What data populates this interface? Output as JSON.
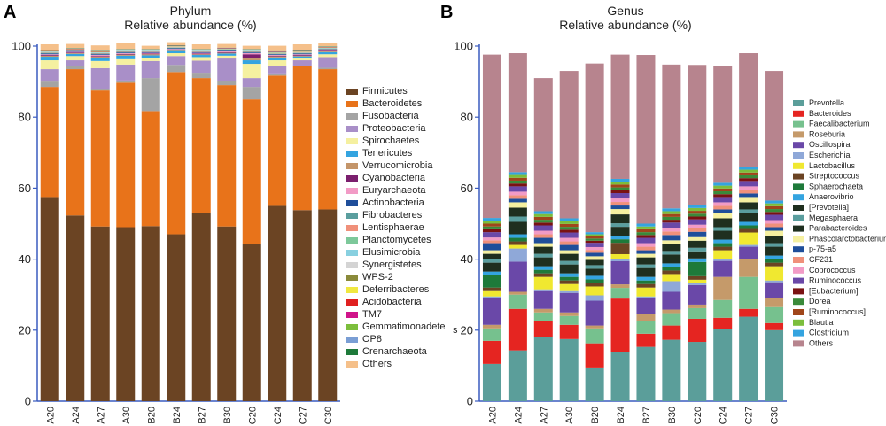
{
  "colors": {
    "Firmicutes": "#6b4423",
    "Bacteroidetes": "#e8731a",
    "Fusobacteria": "#a4a4a4",
    "Proteobacteria": "#a98fc8",
    "Spirochaetes": "#f5f0a0",
    "Tenericutes": "#34a4e0",
    "Verrucomicrobia": "#c4956a",
    "Cyanobacteria": "#7b1f6e",
    "Euryarchaeota": "#f29bc6",
    "Actinobacteria": "#1f4e9a",
    "Fibrobacteres": "#5a9e9e",
    "Lentisphaerae": "#f0907a",
    "Planctomycetes": "#7dc89a",
    "Elusimicrobia": "#88d0e0",
    "Synergistetes": "#d4d4d4",
    "WPS-2": "#8a8a3a",
    "Deferribacteres": "#f0e840",
    "Acidobacteria": "#e02020",
    "TM7": "#d0148a",
    "Gemmatimonadetes": "#7cbe3c",
    "OP8": "#7a9ed4",
    "Crenarchaeota": "#1e7a3a",
    "Others": "#f5c08a",
    "Prevotella": "#5b9e9a",
    "Bacteroides": "#e52521",
    "Faecalibacterium": "#76c18e",
    "Roseburia": "#c59a6a",
    "Oscillospira": "#6a48a8",
    "Escherichia": "#8fa8d8",
    "Lactobacillus": "#f0e830",
    "Streptococcus": "#6b4423",
    "Sphaerochaeta": "#1e7a3a",
    "Anaerovibrio": "#34a4e0",
    "[Prevotella]": "#1f2f1f",
    "Megasphaera": "#5a9e9e",
    "Parabacteroides": "#1f2f1f",
    "Phascolarctobacterium": "#f5f0a0",
    "p-75-a5": "#1f4e9a",
    "CF231": "#f0907a",
    "Coprococcus": "#f29bc6",
    "Ruminococcus": "#6a48a8",
    "[Eubacterium]": "#7a1212",
    "Dorea": "#3a8a3a",
    "[Ruminococcus]": "#a0461a",
    "Blautia": "#7cbe3c",
    "Clostridium": "#34a4e0",
    "Others_genus": "#b7848e"
  },
  "chart_data": [
    {
      "panel": "A",
      "type": "bar",
      "stacked": true,
      "title": "Phylum",
      "subtitle": "Relative abundance (%)",
      "xlabel": "",
      "ylabel": "",
      "ylim": [
        0,
        100
      ],
      "yticks": [
        0,
        20,
        40,
        60,
        80,
        100
      ],
      "categories": [
        "A20",
        "A24",
        "A27",
        "A30",
        "B20",
        "B24",
        "B27",
        "B30",
        "C20",
        "C24",
        "C27",
        "C30"
      ],
      "legend": [
        "Firmicutes",
        "Bacteroidetes",
        "Fusobacteria",
        "Proteobacteria",
        "Spirochaetes",
        "Tenericutes",
        "Verrucomicrobia",
        "Cyanobacteria",
        "Euryarchaeota",
        "Actinobacteria",
        "Fibrobacteres",
        "Lentisphaerae",
        "Planctomycetes",
        "Elusimicrobia",
        "Synergistetes",
        "WPS-2",
        "Deferribacteres",
        "Acidobacteria",
        "TM7",
        "Gemmatimonadete",
        "OP8",
        "Crenarchaeota",
        "Others"
      ],
      "legend_extra_mark": "s",
      "series": [
        {
          "name": "Firmicutes",
          "colorKey": "Firmicutes",
          "values": [
            57.5,
            52.3,
            49.2,
            49.0,
            49.3,
            47.0,
            53.0,
            49.2,
            44.3,
            55.0,
            53.8,
            54.0
          ]
        },
        {
          "name": "Bacteroidetes",
          "colorKey": "Bacteroidetes",
          "values": [
            31.0,
            41.2,
            38.3,
            40.7,
            32.4,
            45.7,
            38.0,
            39.8,
            40.7,
            36.7,
            40.5,
            39.5
          ]
        },
        {
          "name": "Fusobacteria",
          "colorKey": "Fusobacteria",
          "values": [
            1.5,
            1.0,
            0.5,
            0.6,
            9.3,
            2.0,
            1.5,
            1.2,
            3.5,
            0.6,
            0.2,
            0.4
          ]
        },
        {
          "name": "Proteobacteria",
          "colorKey": "Proteobacteria",
          "values": [
            3.5,
            1.5,
            5.8,
            4.5,
            4.8,
            2.5,
            3.4,
            6.3,
            2.5,
            2.0,
            1.5,
            3.0
          ]
        },
        {
          "name": "Spirochaetes",
          "colorKey": "Spirochaetes",
          "values": [
            2.5,
            1.2,
            2.0,
            1.5,
            0.8,
            0.8,
            1.0,
            0.8,
            4.0,
            1.7,
            0.5,
            0.8
          ]
        },
        {
          "name": "Tenericutes",
          "colorKey": "Tenericutes",
          "values": [
            1.0,
            0.6,
            0.9,
            1.0,
            0.8,
            0.6,
            0.6,
            0.6,
            1.0,
            0.8,
            0.6,
            0.6
          ]
        },
        {
          "name": "Verrucomicrobia",
          "colorKey": "Verrucomicrobia",
          "values": [
            0.3,
            0.2,
            0.3,
            0.3,
            0.3,
            0.2,
            0.2,
            0.2,
            0.5,
            0.3,
            0.2,
            0.2
          ]
        },
        {
          "name": "Cyanobacteria",
          "colorKey": "Cyanobacteria",
          "values": [
            0.2,
            0.2,
            0.2,
            0.2,
            0.2,
            0.2,
            0.2,
            0.2,
            1.2,
            0.2,
            0.2,
            0.2
          ]
        },
        {
          "name": "Euryarchaeota",
          "colorKey": "Euryarchaeota",
          "values": [
            0.2,
            0.2,
            0.3,
            0.2,
            0.2,
            0.2,
            0.2,
            0.2,
            0.3,
            0.2,
            0.2,
            0.2
          ]
        },
        {
          "name": "Actinobacteria",
          "colorKey": "Actinobacteria",
          "values": [
            0.2,
            0.2,
            0.2,
            0.2,
            0.2,
            0.2,
            0.2,
            0.2,
            0.2,
            0.2,
            0.2,
            0.2
          ]
        },
        {
          "name": "Fibrobacteres",
          "colorKey": "Fibrobacteres",
          "values": [
            0.2,
            0.1,
            0.2,
            0.2,
            0.1,
            0.1,
            0.1,
            0.1,
            0.2,
            0.1,
            0.1,
            0.1
          ]
        },
        {
          "name": "Lentisphaerae",
          "colorKey": "Lentisphaerae",
          "values": [
            0.1,
            0.1,
            0.1,
            0.1,
            0.1,
            0.1,
            0.1,
            0.1,
            0.1,
            0.1,
            0.1,
            0.1
          ]
        },
        {
          "name": "Planctomycetes",
          "colorKey": "Planctomycetes",
          "values": [
            0.1,
            0.1,
            0.1,
            0.1,
            0.1,
            0.1,
            0.1,
            0.1,
            0.1,
            0.1,
            0.1,
            0.1
          ]
        },
        {
          "name": "Elusimicrobia",
          "colorKey": "Elusimicrobia",
          "values": [
            0.1,
            0.1,
            0.1,
            0.1,
            0.1,
            0.1,
            0.1,
            0.1,
            0.1,
            0.1,
            0.1,
            0.1
          ]
        },
        {
          "name": "Synergistetes",
          "colorKey": "Synergistetes",
          "values": [
            0.1,
            0.1,
            0.1,
            0.1,
            0.1,
            0.1,
            0.1,
            0.1,
            0.1,
            0.1,
            0.1,
            0.1
          ]
        },
        {
          "name": "WPS-2",
          "colorKey": "WPS-2",
          "values": [
            0.05,
            0.05,
            0.05,
            0.05,
            0.05,
            0.05,
            0.05,
            0.05,
            0.05,
            0.05,
            0.05,
            0.05
          ]
        },
        {
          "name": "Deferribacteres",
          "colorKey": "Deferribacteres",
          "values": [
            0.05,
            0.05,
            0.05,
            0.05,
            0.05,
            0.05,
            0.05,
            0.05,
            0.05,
            0.05,
            0.05,
            0.05
          ]
        },
        {
          "name": "Acidobacteria",
          "colorKey": "Acidobacteria",
          "values": [
            0.05,
            0.05,
            0.05,
            0.05,
            0.05,
            0.05,
            0.05,
            0.05,
            0.05,
            0.05,
            0.05,
            0.05
          ]
        },
        {
          "name": "TM7",
          "colorKey": "TM7",
          "values": [
            0.05,
            0.05,
            0.05,
            0.05,
            0.05,
            0.05,
            0.05,
            0.05,
            0.05,
            0.05,
            0.05,
            0.05
          ]
        },
        {
          "name": "Gemmatimonadetes",
          "colorKey": "Gemmatimonadetes",
          "values": [
            0.05,
            0.05,
            0.05,
            0.05,
            0.05,
            0.05,
            0.05,
            0.05,
            0.05,
            0.05,
            0.05,
            0.05
          ]
        },
        {
          "name": "OP8",
          "colorKey": "OP8",
          "values": [
            0.05,
            0.05,
            0.05,
            0.05,
            0.05,
            0.05,
            0.05,
            0.05,
            0.05,
            0.05,
            0.05,
            0.05
          ]
        },
        {
          "name": "Crenarchaeota",
          "colorKey": "Crenarchaeota",
          "values": [
            0.05,
            0.05,
            0.05,
            0.05,
            0.05,
            0.05,
            0.05,
            0.05,
            0.05,
            0.05,
            0.05,
            0.05
          ]
        },
        {
          "name": "Others",
          "colorKey": "Others",
          "values": [
            1.65,
            1.15,
            1.55,
            1.75,
            0.95,
            0.85,
            1.35,
            1.05,
            0.95,
            1.55,
            1.75,
            0.85
          ]
        }
      ]
    },
    {
      "panel": "B",
      "type": "bar",
      "stacked": true,
      "title": "Genus",
      "subtitle": "Relative abundance (%)",
      "xlabel": "",
      "ylabel": "",
      "ylim": [
        0,
        100
      ],
      "yticks": [
        0,
        20,
        40,
        60,
        80,
        100
      ],
      "categories": [
        "A20",
        "A24",
        "A27",
        "A30",
        "B20",
        "B24",
        "B27",
        "B30",
        "C20",
        "C24",
        "C27",
        "C30"
      ],
      "legend": [
        "Prevotella",
        "Bacteroides",
        "Faecalibacterium",
        "Roseburia",
        "Oscillospira",
        "Escherichia",
        "Lactobacillus",
        "Streptococcus",
        "Sphaerochaeta",
        "Anaerovibrio",
        "[Prevotella]",
        "Megasphaera",
        "Parabacteroides",
        "Phascolarctobacterium",
        "p-75-a5",
        "CF231",
        "Coprococcus",
        "Ruminococcus",
        "[Eubacterium]",
        "Dorea",
        "[Ruminococcus]",
        "Blautia",
        "Clostridium",
        "Others"
      ],
      "series": [
        {
          "name": "Prevotella",
          "colorKey": "Prevotella",
          "values": [
            10.5,
            14.3,
            18.0,
            17.5,
            9.5,
            13.9,
            15.3,
            17.3,
            16.7,
            20.3,
            23.8,
            20.0
          ]
        },
        {
          "name": "Bacteroides",
          "colorKey": "Bacteroides",
          "values": [
            6.5,
            11.7,
            4.5,
            4.0,
            6.8,
            15.0,
            3.7,
            4.0,
            6.5,
            3.2,
            2.2,
            2.0
          ]
        },
        {
          "name": "Faecalibacterium",
          "colorKey": "Faecalibacterium",
          "values": [
            3.5,
            4.0,
            2.5,
            2.5,
            4.2,
            3.0,
            3.5,
            3.5,
            3.0,
            5.0,
            9.0,
            4.5
          ]
        },
        {
          "name": "Roseburia",
          "colorKey": "Roseburia",
          "values": [
            1.0,
            0.8,
            1.0,
            1.0,
            0.8,
            1.0,
            2.0,
            1.0,
            1.0,
            6.5,
            5.0,
            2.5
          ]
        },
        {
          "name": "Oscillospira",
          "colorKey": "Oscillospira",
          "values": [
            7.5,
            8.5,
            5.0,
            5.5,
            7.0,
            6.5,
            4.5,
            5.0,
            5.5,
            4.5,
            3.5,
            4.5
          ]
        },
        {
          "name": "Escherichia",
          "colorKey": "Escherichia",
          "values": [
            0.5,
            3.7,
            0.5,
            0.5,
            1.5,
            0.5,
            0.5,
            3.0,
            0.5,
            0.5,
            0.5,
            0.5
          ]
        },
        {
          "name": "Lactobacillus",
          "colorKey": "Lactobacillus",
          "values": [
            1.5,
            1.0,
            3.5,
            2.0,
            2.5,
            1.5,
            2.5,
            2.0,
            1.0,
            2.5,
            3.5,
            4.0
          ]
        },
        {
          "name": "Streptococcus",
          "colorKey": "Streptococcus",
          "values": [
            1.0,
            1.0,
            1.0,
            1.0,
            1.0,
            3.2,
            1.0,
            1.0,
            1.0,
            1.0,
            1.0,
            1.0
          ]
        },
        {
          "name": "Sphaerochaeta",
          "colorKey": "Sphaerochaeta",
          "values": [
            3.5,
            1.0,
            1.0,
            1.0,
            1.0,
            1.0,
            1.0,
            1.0,
            4.0,
            1.0,
            1.0,
            1.0
          ]
        },
        {
          "name": "Anaerovibrio",
          "colorKey": "Anaerovibrio",
          "values": [
            1.0,
            1.0,
            1.0,
            1.0,
            1.0,
            1.0,
            1.0,
            1.0,
            1.0,
            1.0,
            1.0,
            1.0
          ]
        },
        {
          "name": "[Prevotella]",
          "colorKey": "[Prevotella]",
          "values": [
            2.5,
            3.5,
            2.5,
            2.5,
            2.0,
            2.5,
            2.5,
            2.5,
            2.0,
            2.5,
            2.5,
            2.5
          ]
        },
        {
          "name": "Megasphaera",
          "colorKey": "Megasphaera",
          "values": [
            1.0,
            1.5,
            1.0,
            1.0,
            1.0,
            1.0,
            1.0,
            1.0,
            1.0,
            1.0,
            1.0,
            1.0
          ]
        },
        {
          "name": "Parabacteroides",
          "colorKey": "Parabacteroides",
          "values": [
            1.5,
            2.5,
            2.0,
            2.0,
            1.5,
            2.5,
            2.0,
            2.0,
            2.0,
            2.5,
            2.0,
            2.0
          ]
        },
        {
          "name": "Phascolarctobacterium",
          "colorKey": "Phascolarctobacterium",
          "values": [
            1.0,
            1.5,
            1.0,
            1.0,
            1.0,
            1.5,
            1.0,
            1.0,
            1.0,
            1.5,
            1.5,
            1.5
          ]
        },
        {
          "name": "p-75-a5",
          "colorKey": "p-75-a5",
          "values": [
            2.0,
            1.0,
            1.5,
            1.5,
            1.0,
            1.0,
            1.0,
            1.5,
            1.5,
            1.0,
            1.0,
            1.0
          ]
        },
        {
          "name": "CF231",
          "colorKey": "CF231",
          "values": [
            0.8,
            1.0,
            1.0,
            1.0,
            0.8,
            1.0,
            1.0,
            1.0,
            1.0,
            1.0,
            1.0,
            1.0
          ]
        },
        {
          "name": "Coprococcus",
          "colorKey": "Coprococcus",
          "values": [
            0.8,
            1.0,
            1.0,
            1.0,
            0.8,
            1.0,
            1.0,
            1.0,
            1.0,
            1.0,
            1.0,
            1.0
          ]
        },
        {
          "name": "Ruminococcus",
          "colorKey": "Ruminococcus",
          "values": [
            1.5,
            1.5,
            1.5,
            1.5,
            1.2,
            1.5,
            1.5,
            1.5,
            1.5,
            1.5,
            1.5,
            1.5
          ]
        },
        {
          "name": "[Eubacterium]",
          "colorKey": "[Eubacterium]",
          "values": [
            0.8,
            0.8,
            0.8,
            0.8,
            0.6,
            0.8,
            0.8,
            0.8,
            0.8,
            0.8,
            0.8,
            0.8
          ]
        },
        {
          "name": "Dorea",
          "colorKey": "Dorea",
          "values": [
            0.8,
            0.8,
            0.8,
            0.8,
            0.6,
            0.8,
            0.8,
            0.8,
            0.8,
            0.8,
            0.8,
            0.8
          ]
        },
        {
          "name": "[Ruminococcus]",
          "colorKey": "[Ruminococcus]",
          "values": [
            0.8,
            0.8,
            0.8,
            0.8,
            0.6,
            0.8,
            0.8,
            0.8,
            0.8,
            0.8,
            0.8,
            0.8
          ]
        },
        {
          "name": "Blautia",
          "colorKey": "Blautia",
          "values": [
            0.8,
            0.8,
            0.8,
            0.8,
            0.6,
            0.8,
            0.8,
            0.8,
            0.8,
            0.8,
            0.8,
            0.8
          ]
        },
        {
          "name": "Clostridium",
          "colorKey": "Clostridium",
          "values": [
            0.8,
            0.8,
            0.8,
            0.8,
            0.6,
            0.8,
            0.8,
            0.8,
            0.8,
            0.8,
            0.8,
            0.8
          ]
        },
        {
          "name": "Others",
          "colorKey": "Others_genus",
          "values": [
            46.0,
            33.5,
            37.5,
            41.5,
            47.5,
            35.0,
            47.5,
            40.5,
            39.5,
            33.0,
            32.0,
            36.5
          ]
        }
      ]
    }
  ]
}
